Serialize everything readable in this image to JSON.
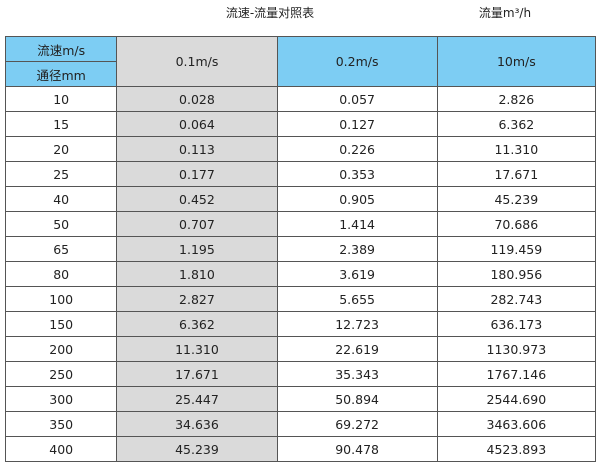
{
  "title": "流速-流量对照表",
  "unit": "流量m³/h",
  "header": {
    "velocity_label": "流速m/s",
    "diameter_label": "通径mm",
    "columns": [
      "0.1m/s",
      "0.2m/s",
      "10m/s"
    ]
  },
  "rows": [
    [
      "10",
      "0.028",
      "0.057",
      "2.826"
    ],
    [
      "15",
      "0.064",
      "0.127",
      "6.362"
    ],
    [
      "20",
      "0.113",
      "0.226",
      "11.310"
    ],
    [
      "25",
      "0.177",
      "0.353",
      "17.671"
    ],
    [
      "40",
      "0.452",
      "0.905",
      "45.239"
    ],
    [
      "50",
      "0.707",
      "1.414",
      "70.686"
    ],
    [
      "65",
      "1.195",
      "2.389",
      "119.459"
    ],
    [
      "80",
      "1.810",
      "3.619",
      "180.956"
    ],
    [
      "100",
      "2.827",
      "5.655",
      "282.743"
    ],
    [
      "150",
      "6.362",
      "12.723",
      "636.173"
    ],
    [
      "200",
      "11.310",
      "22.619",
      "1130.973"
    ],
    [
      "250",
      "17.671",
      "35.343",
      "1767.146"
    ],
    [
      "300",
      "25.447",
      "50.894",
      "2544.690"
    ],
    [
      "350",
      "34.636",
      "69.272",
      "3463.606"
    ],
    [
      "400",
      "45.239",
      "90.478",
      "4523.893"
    ]
  ],
  "colors": {
    "header": "#7dcdf3",
    "selected_header": "#6ab1d6",
    "highlight_column": "#dadada"
  }
}
